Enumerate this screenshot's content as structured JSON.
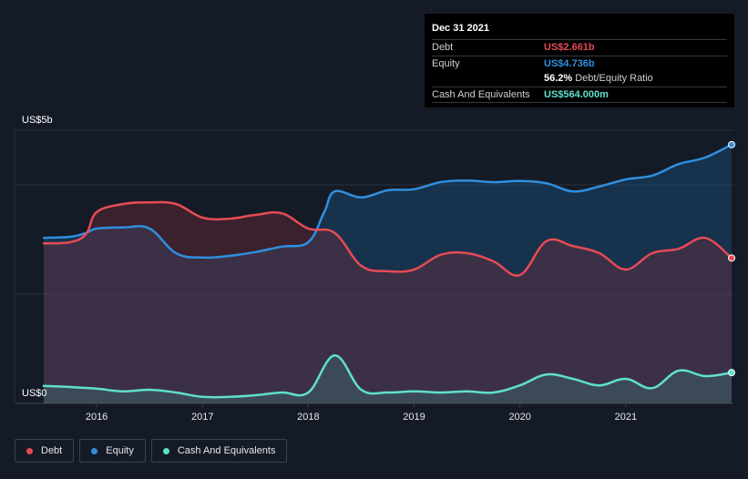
{
  "tooltip": {
    "date": "Dec 31 2021",
    "debt_label": "Debt",
    "debt_value": "US$2.661b",
    "equity_label": "Equity",
    "equity_value": "US$4.736b",
    "ratio_value": "56.2%",
    "ratio_label": "Debt/Equity Ratio",
    "cash_label": "Cash And Equivalents",
    "cash_value": "US$564.000m"
  },
  "legend": {
    "debt": "Debt",
    "equity": "Equity",
    "cash": "Cash And Equivalents"
  },
  "colors": {
    "background": "#151b26",
    "debt": "#e64b55",
    "equity": "#2f8fe0",
    "cash": "#5fe0cc"
  },
  "chart_data": {
    "type": "area",
    "ytop_label": "US$5b",
    "ybottom_label": "US$0",
    "ylim": [
      0,
      5
    ],
    "xlim": [
      2015.5,
      2022.0
    ],
    "x_ticks": [
      2016,
      2017,
      2018,
      2019,
      2020,
      2021
    ],
    "x_tick_labels": [
      "2016",
      "2017",
      "2018",
      "2019",
      "2020",
      "2021"
    ],
    "grid": true,
    "legend_position": "bottom-left",
    "series": [
      {
        "name": "Debt",
        "x": [
          2015.5,
          2015.75,
          2015.9,
          2016.0,
          2016.25,
          2016.5,
          2016.75,
          2017.0,
          2017.25,
          2017.5,
          2017.75,
          2018.0,
          2018.25,
          2018.5,
          2018.75,
          2019.0,
          2019.25,
          2019.5,
          2019.75,
          2020.0,
          2020.25,
          2020.5,
          2020.75,
          2021.0,
          2021.25,
          2021.5,
          2021.75,
          2022.0
        ],
        "values": [
          2.93,
          2.95,
          3.1,
          3.5,
          3.65,
          3.68,
          3.65,
          3.4,
          3.38,
          3.45,
          3.48,
          3.2,
          3.12,
          2.52,
          2.42,
          2.45,
          2.72,
          2.75,
          2.6,
          2.35,
          2.97,
          2.88,
          2.75,
          2.45,
          2.75,
          2.83,
          3.03,
          2.661
        ]
      },
      {
        "name": "Equity",
        "x": [
          2015.5,
          2015.75,
          2015.9,
          2016.0,
          2016.25,
          2016.5,
          2016.75,
          2017.0,
          2017.25,
          2017.5,
          2017.75,
          2018.0,
          2018.15,
          2018.25,
          2018.5,
          2018.75,
          2019.0,
          2019.25,
          2019.5,
          2019.75,
          2020.0,
          2020.25,
          2020.5,
          2020.75,
          2021.0,
          2021.25,
          2021.5,
          2021.75,
          2022.0
        ],
        "values": [
          3.03,
          3.05,
          3.12,
          3.2,
          3.22,
          3.2,
          2.75,
          2.67,
          2.7,
          2.77,
          2.87,
          2.95,
          3.5,
          3.88,
          3.77,
          3.9,
          3.92,
          4.05,
          4.08,
          4.05,
          4.07,
          4.03,
          3.88,
          3.97,
          4.1,
          4.17,
          4.38,
          4.5,
          4.736
        ]
      },
      {
        "name": "Cash And Equivalents",
        "x": [
          2015.5,
          2015.75,
          2016.0,
          2016.25,
          2016.5,
          2016.75,
          2017.0,
          2017.25,
          2017.5,
          2017.75,
          2018.0,
          2018.25,
          2018.5,
          2018.75,
          2019.0,
          2019.25,
          2019.5,
          2019.75,
          2020.0,
          2020.25,
          2020.5,
          2020.75,
          2021.0,
          2021.25,
          2021.5,
          2021.75,
          2022.0
        ],
        "values": [
          0.32,
          0.3,
          0.27,
          0.22,
          0.25,
          0.2,
          0.12,
          0.12,
          0.15,
          0.2,
          0.2,
          0.88,
          0.25,
          0.2,
          0.22,
          0.2,
          0.22,
          0.2,
          0.33,
          0.53,
          0.45,
          0.33,
          0.45,
          0.28,
          0.6,
          0.5,
          0.564
        ]
      }
    ]
  }
}
